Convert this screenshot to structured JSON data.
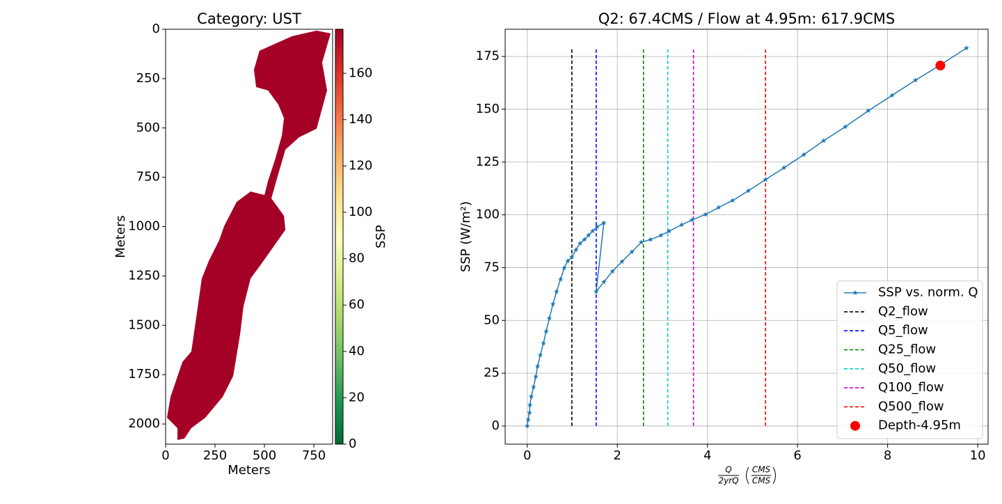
{
  "chart_data": [
    {
      "type": "image",
      "title": "Category: UST",
      "xlabel": "Meters",
      "ylabel": "Meters",
      "xlim": [
        0,
        845
      ],
      "ylim": [
        2102,
        0
      ],
      "xticks": [
        0,
        250,
        500,
        750
      ],
      "yticks": [
        0,
        250,
        500,
        750,
        1000,
        1250,
        1500,
        1750,
        2000
      ],
      "value": 179,
      "outline": [
        [
          475,
          109
        ],
        [
          641,
          35
        ],
        [
          764,
          7
        ],
        [
          835,
          21
        ],
        [
          792,
          169
        ],
        [
          817,
          310
        ],
        [
          764,
          504
        ],
        [
          676,
          547
        ],
        [
          606,
          610
        ],
        [
          570,
          734
        ],
        [
          535,
          857
        ],
        [
          599,
          945
        ],
        [
          606,
          1016
        ],
        [
          482,
          1192
        ],
        [
          430,
          1263
        ],
        [
          394,
          1404
        ],
        [
          377,
          1545
        ],
        [
          342,
          1757
        ],
        [
          289,
          1862
        ],
        [
          201,
          1968
        ],
        [
          130,
          2021
        ],
        [
          95,
          2074
        ],
        [
          60,
          2081
        ],
        [
          60,
          2021
        ],
        [
          7,
          1968
        ],
        [
          25,
          1862
        ],
        [
          85,
          1686
        ],
        [
          130,
          1633
        ],
        [
          148,
          1510
        ],
        [
          183,
          1263
        ],
        [
          218,
          1175
        ],
        [
          271,
          1069
        ],
        [
          296,
          998
        ],
        [
          359,
          875
        ],
        [
          430,
          822
        ],
        [
          500,
          840
        ],
        [
          518,
          769
        ],
        [
          553,
          663
        ],
        [
          588,
          540
        ],
        [
          599,
          451
        ],
        [
          570,
          381
        ],
        [
          518,
          310
        ],
        [
          458,
          293
        ],
        [
          447,
          205
        ]
      ],
      "colorbar": {
        "label": "SSP",
        "clim": [
          0,
          179
        ],
        "ticks": [
          0,
          20,
          40,
          60,
          80,
          100,
          120,
          140,
          160
        ],
        "colormap": [
          "#006837",
          "#1a9850",
          "#66bd63",
          "#a6d96a",
          "#d9ef8b",
          "#ffffbf",
          "#fee08b",
          "#fdae61",
          "#f46d43",
          "#d73027",
          "#a50026"
        ]
      }
    },
    {
      "type": "line",
      "title": "Q2: 67.4CMS / Flow at 4.95m: 617.9CMS",
      "xlabel": {
        "fraction": [
          "Q",
          "2yrQ"
        ],
        "unit": [
          "CMS",
          "CMS"
        ]
      },
      "ylabel": "SSP (W/m²)",
      "xlim": [
        -0.49,
        10.23
      ],
      "ylim": [
        -8.6,
        187.9
      ],
      "xticks": [
        0,
        2,
        4,
        6,
        8,
        10
      ],
      "yticks": [
        0,
        25,
        50,
        75,
        100,
        125,
        150,
        175
      ],
      "grid": true,
      "legend": "lower right",
      "x": [
        0,
        0.02,
        0.05,
        0.06,
        0.09,
        0.14,
        0.19,
        0.23,
        0.29,
        0.36,
        0.42,
        0.49,
        0.57,
        0.65,
        0.74,
        0.82,
        0.9,
        0.99,
        1.08,
        1.17,
        1.27,
        1.36,
        1.45,
        1.55,
        1.7,
        1.53,
        1.7,
        1.89,
        2.1,
        2.32,
        2.53,
        2.74,
        2.97,
        3.15,
        3.43,
        3.66,
        3.96,
        4.25,
        4.56,
        4.91,
        5.29,
        5.7,
        6.14,
        6.58,
        7.06,
        7.57,
        8.1,
        8.62,
        9.18,
        9.75
      ],
      "series": [
        {
          "name": "SSP vs. norm. Q",
          "color": "#1f77b4",
          "values": [
            0,
            3,
            6.3,
            10,
            14,
            18.5,
            23.4,
            28.3,
            33.6,
            39.2,
            44.8,
            51,
            57.7,
            63.6,
            69.5,
            74.8,
            78.1,
            80.1,
            83.4,
            86.4,
            88.3,
            90.3,
            92.3,
            94.3,
            96.2,
            63.6,
            68.2,
            73.2,
            77.8,
            82.4,
            87,
            88.3,
            90.3,
            92.3,
            95.3,
            97.6,
            100.2,
            103.5,
            106.8,
            111.4,
            116.7,
            122.3,
            128.5,
            135.1,
            141.7,
            149.3,
            156.6,
            163.8,
            171.1,
            179
          ]
        }
      ],
      "vlines": [
        {
          "name": "Q2_flow",
          "color": "#000000",
          "x": 0.99,
          "ymin": 0,
          "ymax": 179
        },
        {
          "name": "Q5_flow",
          "color": "#0000ff",
          "x": 1.53,
          "ymin": 0,
          "ymax": 179
        },
        {
          "name": "Q25_flow",
          "color": "#008000",
          "x": 2.58,
          "ymin": 0,
          "ymax": 179
        },
        {
          "name": "Q50_flow",
          "color": "#00d5c5",
          "x": 3.12,
          "ymin": 0,
          "ymax": 179
        },
        {
          "name": "Q100_flow",
          "color": "#cc00cc",
          "x": 3.69,
          "ymin": 0,
          "ymax": 179
        },
        {
          "name": "Q500_flow",
          "color": "#ff0000",
          "x": 5.29,
          "ymin": 0,
          "ymax": 179
        }
      ],
      "points": [
        {
          "name": "Depth-4.95m",
          "color": "#ff0000",
          "x": 9.17,
          "y": 170.7
        }
      ]
    }
  ]
}
